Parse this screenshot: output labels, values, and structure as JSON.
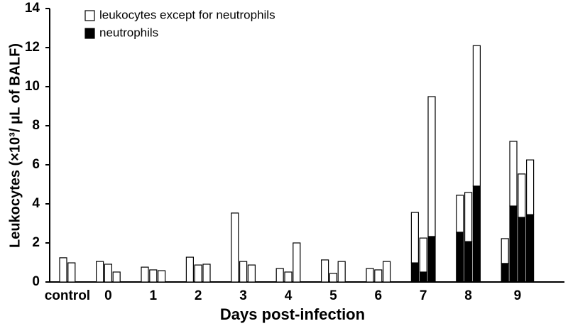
{
  "chart_data": {
    "type": "stacked-bar",
    "xlabel": "Days post-infection",
    "ylabel": "Leukocytes  (×10³/ μL of BALF)",
    "categories": [
      "control",
      null,
      "0",
      null,
      null,
      "1",
      null,
      null,
      "2",
      null,
      null,
      "3",
      null,
      null,
      "4",
      null,
      null,
      "5",
      null,
      null,
      "6",
      null,
      null,
      "7",
      null,
      null,
      "8",
      null,
      null,
      "9",
      null,
      null,
      null
    ],
    "series": [
      {
        "name": "leukocytes except for neutrophils",
        "color": "#ffffff",
        "values": [
          1.24,
          0.98,
          1.05,
          0.91,
          0.51,
          0.76,
          0.62,
          0.58,
          1.27,
          0.87,
          0.91,
          3.53,
          1.05,
          0.87,
          0.69,
          0.51,
          2.0,
          1.13,
          0.44,
          1.05,
          0.69,
          0.62,
          1.05,
          2.58,
          1.74,
          7.16,
          1.89,
          2.51,
          7.19,
          1.27,
          3.31,
          2.22,
          2.8
        ]
      },
      {
        "name": "neutrophils",
        "color": "#000000",
        "values": [
          0,
          0,
          0,
          0,
          0,
          0,
          0,
          0,
          0,
          0,
          0,
          0,
          0,
          0,
          0,
          0,
          0,
          0,
          0,
          0,
          0,
          0,
          0,
          0.98,
          0.51,
          2.33,
          2.55,
          2.07,
          4.91,
          0.95,
          3.89,
          3.31,
          3.45
        ]
      }
    ],
    "ylim": [
      0,
      14
    ],
    "yticks": [
      0,
      2,
      4,
      6,
      8,
      10,
      12,
      14
    ]
  }
}
